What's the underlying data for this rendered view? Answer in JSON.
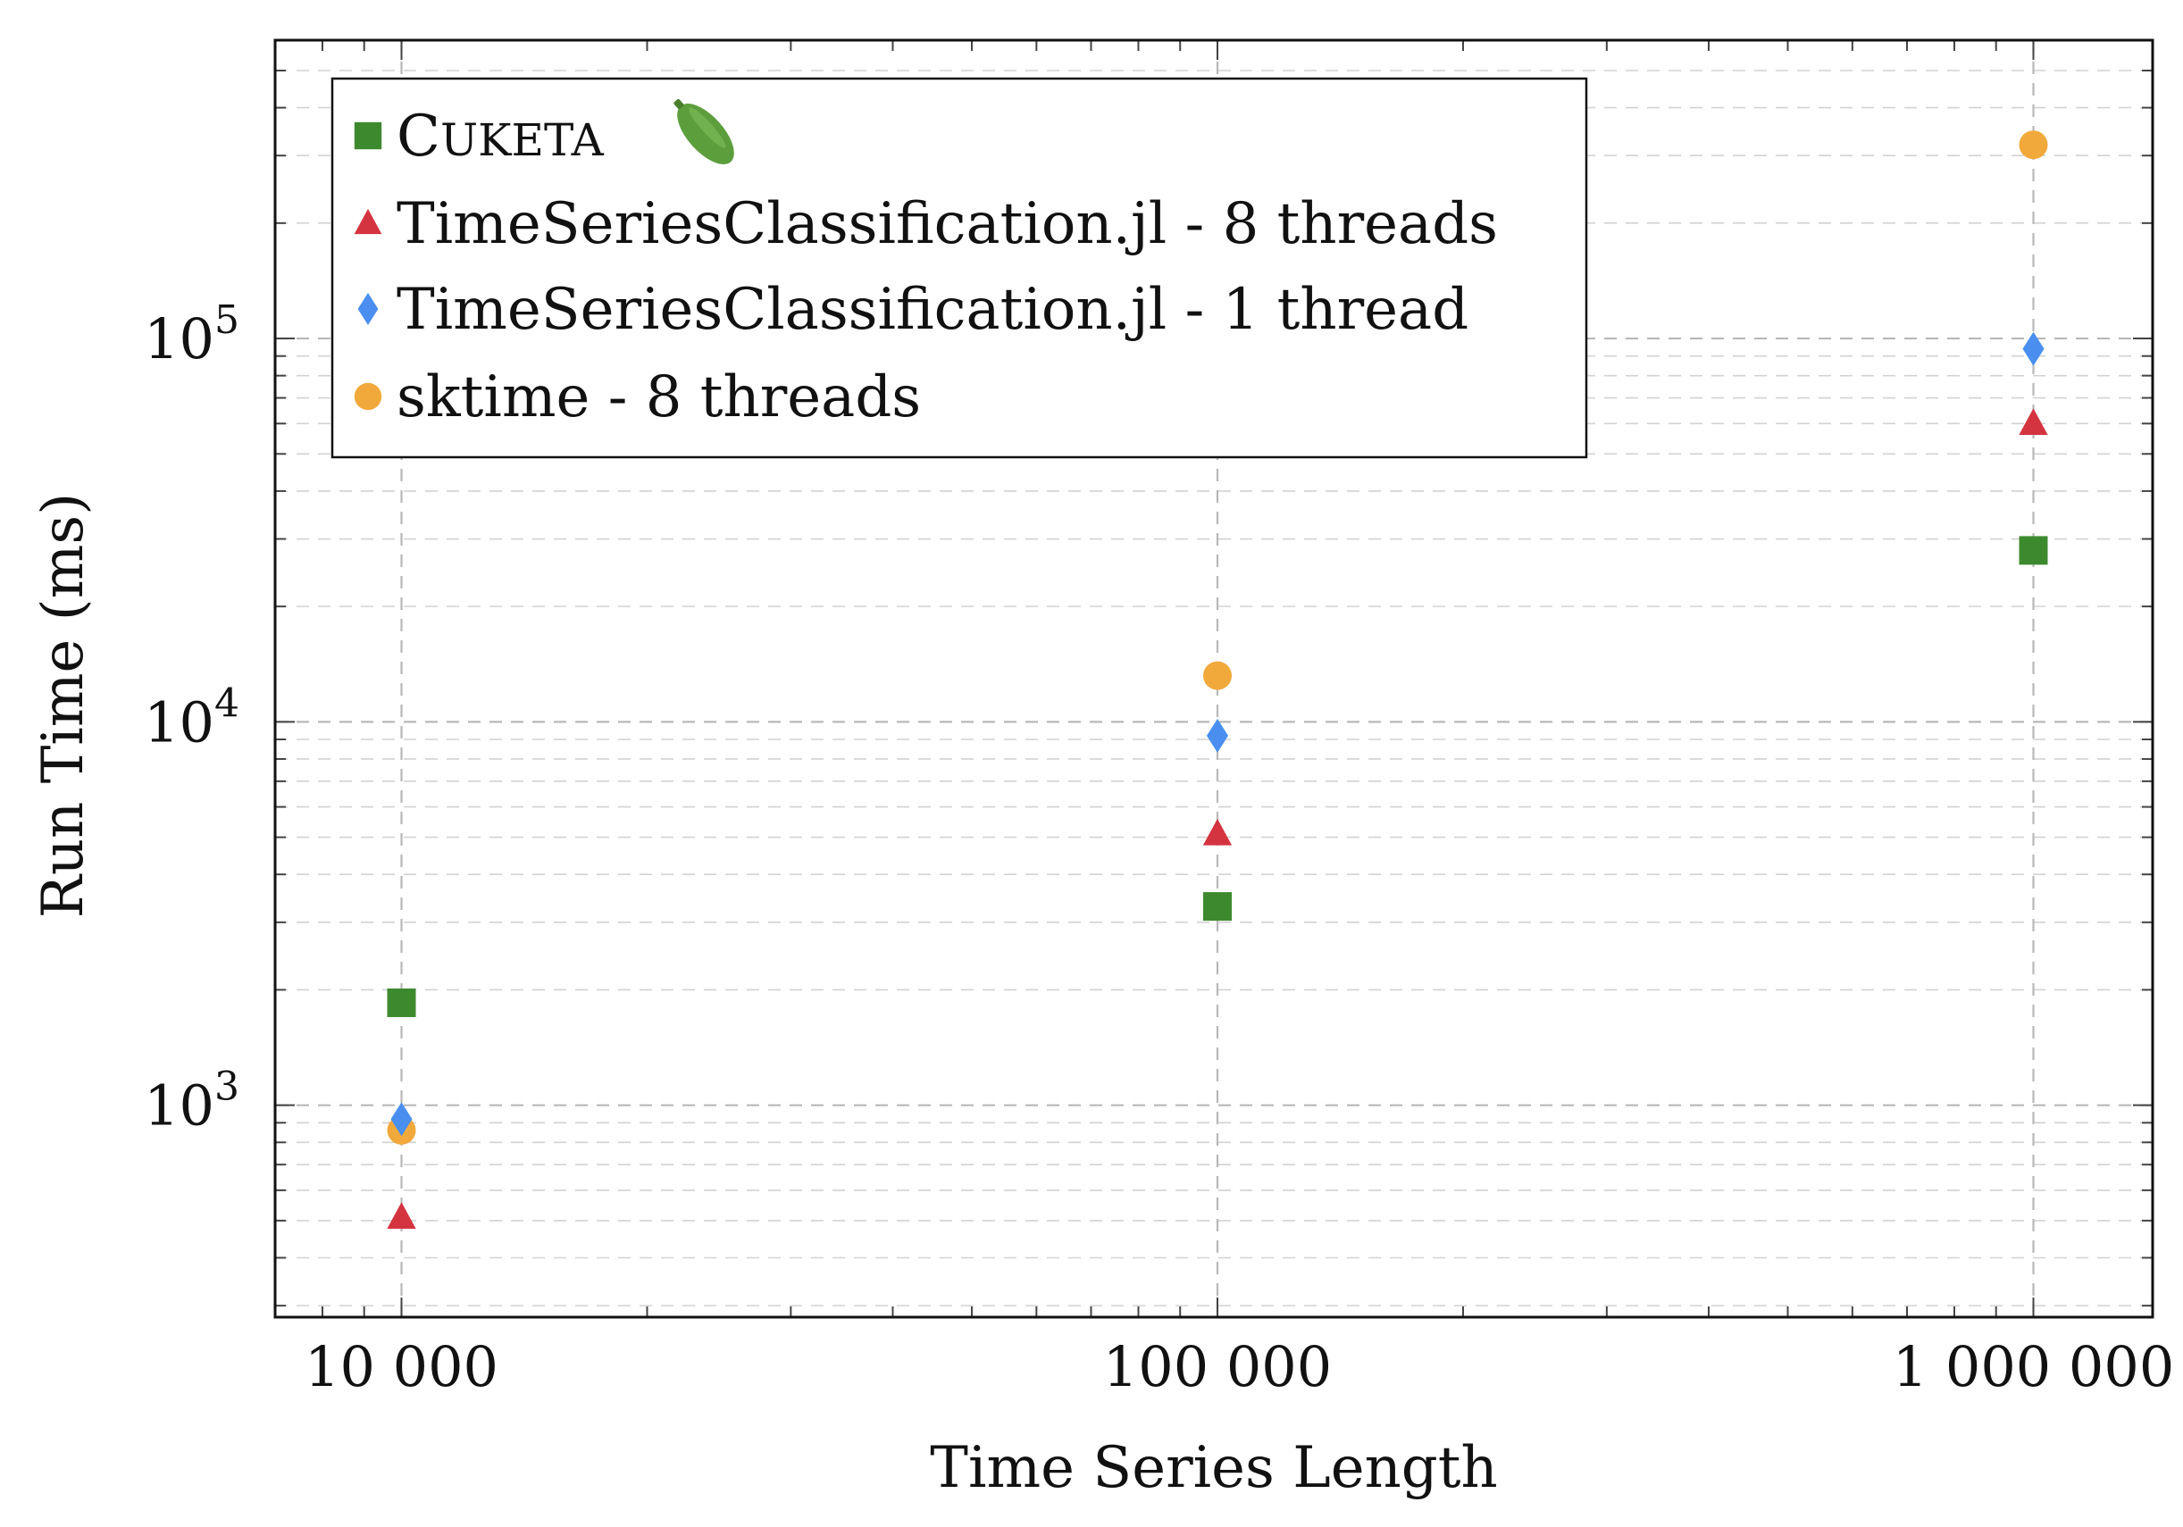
{
  "chart_data": {
    "type": "scatter",
    "title": "",
    "xlabel": "Time Series Length",
    "ylabel": "Run Time (ms)",
    "x_scale": "log",
    "y_scale": "log",
    "xlim": [
      7000,
      1400000
    ],
    "ylim": [
      280,
      600000
    ],
    "x_ticks": [
      {
        "value": 10000,
        "label": "10 000"
      },
      {
        "value": 100000,
        "label": "100 000"
      },
      {
        "value": 1000000,
        "label": "1 000 000"
      }
    ],
    "y_ticks": [
      {
        "value": 1000,
        "base": "10",
        "exp": "3"
      },
      {
        "value": 10000,
        "base": "10",
        "exp": "4"
      },
      {
        "value": 100000,
        "base": "10",
        "exp": "5"
      }
    ],
    "grid": true,
    "legend_position": "top-left",
    "x": [
      10000,
      100000,
      1000000
    ],
    "series": [
      {
        "name": "Cuketa",
        "legend_label": "Cuketa",
        "marker": "square",
        "color": "#3d8a2e",
        "values": [
          1850,
          3300,
          28000
        ]
      },
      {
        "name": "TimeSeriesClassification.jl - 8 threads",
        "legend_label": "TimeSeriesClassification.jl - 8 threads",
        "marker": "triangle",
        "color": "#d43440",
        "values": [
          510,
          5100,
          60000
        ]
      },
      {
        "name": "TimeSeriesClassification.jl - 1 thread",
        "legend_label": "TimeSeriesClassification.jl - 1 thread",
        "marker": "diamond",
        "color": "#4a8ff0",
        "values": [
          920,
          9200,
          94000
        ]
      },
      {
        "name": "sktime - 8 threads",
        "legend_label": "sktime - 8 threads",
        "marker": "circle",
        "color": "#f2a93b",
        "values": [
          860,
          13200,
          320000
        ]
      }
    ],
    "legend_icon": "cucumber-icon",
    "legend_icon_color": "#5c9e3c"
  }
}
